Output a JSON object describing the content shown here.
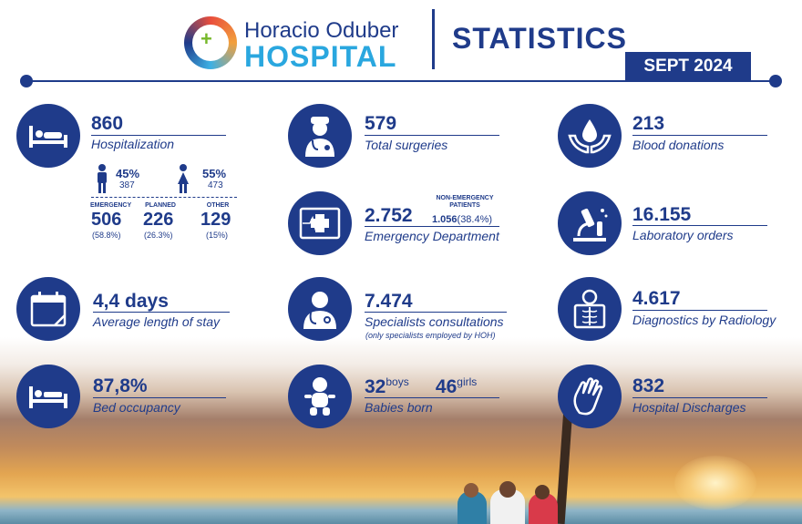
{
  "header": {
    "brand_top": "Horacio Oduber",
    "brand_bottom": "HOSPITAL",
    "title": "STATISTICS",
    "date": "SEPT 2024"
  },
  "hospitalization": {
    "value": "860",
    "label": "Hospitalization",
    "male_pct": "45%",
    "male_count": "387",
    "female_pct": "55%",
    "female_count": "473",
    "emergency_label": "EMERGENCY",
    "emergency_value": "506",
    "emergency_pct": "(58.8%)",
    "planned_label": "PLANNED",
    "planned_value": "226",
    "planned_pct": "(26.3%)",
    "other_label": "OTHER",
    "other_value": "129",
    "other_pct": "(15%)"
  },
  "surgeries": {
    "value": "579",
    "label": "Total surgeries"
  },
  "blood": {
    "value": "213",
    "label": "Blood donations"
  },
  "emergency": {
    "value": "2.752",
    "label": "Emergency Department",
    "nonemergency_caption": "NON-EMERGENCY PATIENTS",
    "nonemergency_value": "1.056",
    "nonemergency_pct": "(38.4%)"
  },
  "laboratory": {
    "value": "16.155",
    "label": "Laboratory orders"
  },
  "stay": {
    "value": "4,4 days",
    "label": "Average length of stay"
  },
  "specialists": {
    "value": "7.474",
    "label": "Specialists consultations",
    "note": "(only specialists employed by HOH)"
  },
  "radiology": {
    "value": "4.617",
    "label": "Diagnostics by Radiology"
  },
  "bed": {
    "value": "87,8%",
    "label": "Bed occupancy"
  },
  "babies": {
    "boys_value": "32",
    "boys_label": "boys",
    "girls_value": "46",
    "girls_label": "girls",
    "label": "Babies born"
  },
  "discharges": {
    "value": "832",
    "label": "Hospital Discharges"
  },
  "icons": [
    "bed-patient-icon",
    "doctor-icon",
    "blood-hands-icon",
    "ecg-icon",
    "microscope-icon",
    "calendar-icon",
    "stethoscope-doctor-icon",
    "xray-icon",
    "bed-icon",
    "baby-icon",
    "waving-hand-icon",
    "male-icon",
    "female-icon",
    "logo-icon"
  ],
  "colors": {
    "primary": "#1f3b8a",
    "accent": "#2aa7df"
  }
}
